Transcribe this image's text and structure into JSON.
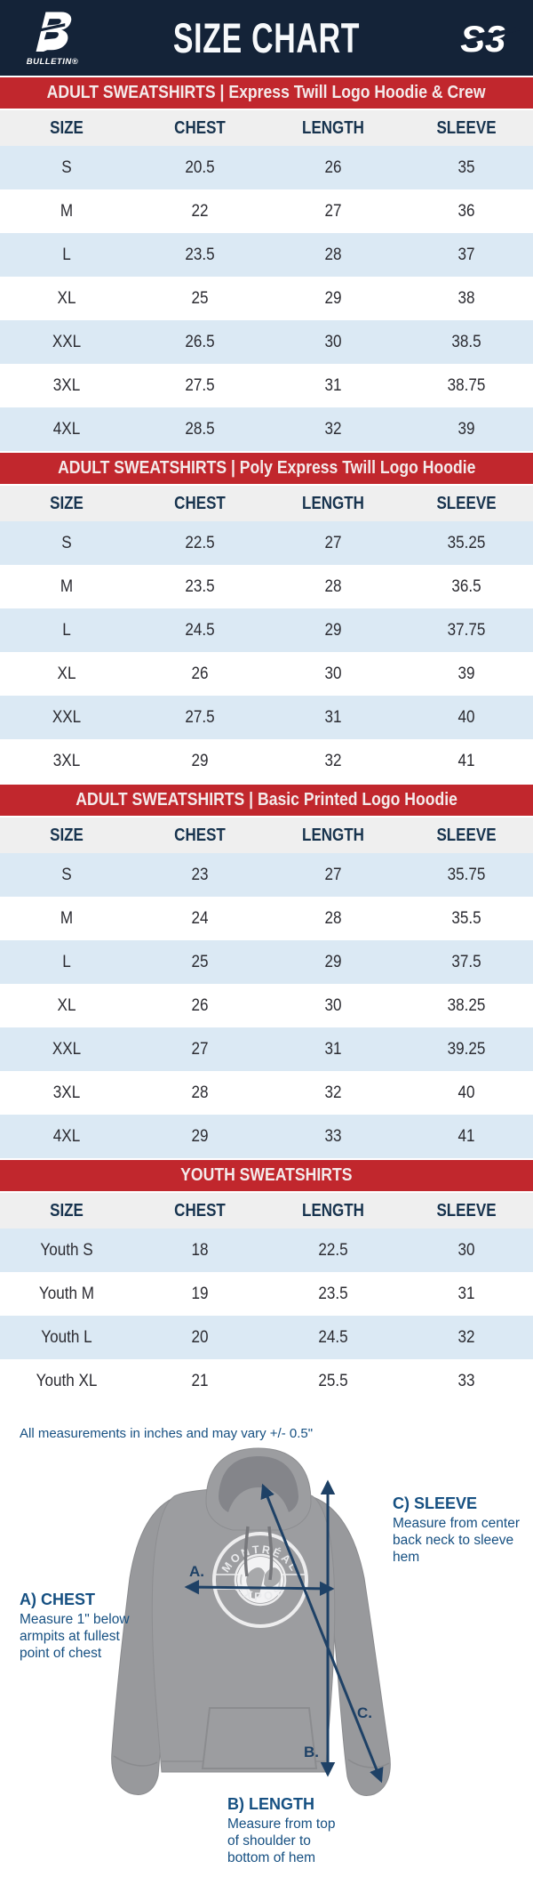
{
  "header": {
    "title": "SIZE CHART",
    "left_logo_icon": "bulletin-b-logo",
    "left_logo_text": "BULLETIN®",
    "right_logo_icon": "s3-logo",
    "right_logo_alt": "S3"
  },
  "columns": [
    "SIZE",
    "CHEST",
    "LENGTH",
    "SLEEVE"
  ],
  "tables": [
    {
      "banner": "ADULT SWEATSHIRTS | Express Twill Logo Hoodie & Crew",
      "rows": [
        [
          "S",
          "20.5",
          "26",
          "35"
        ],
        [
          "M",
          "22",
          "27",
          "36"
        ],
        [
          "L",
          "23.5",
          "28",
          "37"
        ],
        [
          "XL",
          "25",
          "29",
          "38"
        ],
        [
          "XXL",
          "26.5",
          "30",
          "38.5"
        ],
        [
          "3XL",
          "27.5",
          "31",
          "38.75"
        ],
        [
          "4XL",
          "28.5",
          "32",
          "39"
        ]
      ]
    },
    {
      "banner": "ADULT SWEATSHIRTS | Poly Express Twill Logo Hoodie",
      "rows": [
        [
          "S",
          "22.5",
          "27",
          "35.25"
        ],
        [
          "M",
          "23.5",
          "28",
          "36.5"
        ],
        [
          "L",
          "24.5",
          "29",
          "37.75"
        ],
        [
          "XL",
          "26",
          "30",
          "39"
        ],
        [
          "XXL",
          "27.5",
          "31",
          "40"
        ],
        [
          "3XL",
          "29",
          "32",
          "41"
        ]
      ]
    },
    {
      "banner": "ADULT SWEATSHIRTS | Basic Printed Logo Hoodie",
      "rows": [
        [
          "S",
          "23",
          "27",
          "35.75"
        ],
        [
          "M",
          "24",
          "28",
          "35.5"
        ],
        [
          "L",
          "25",
          "29",
          "37.5"
        ],
        [
          "XL",
          "26",
          "30",
          "38.25"
        ],
        [
          "XXL",
          "27",
          "31",
          "39.25"
        ],
        [
          "3XL",
          "28",
          "32",
          "40"
        ],
        [
          "4XL",
          "29",
          "33",
          "41"
        ]
      ]
    },
    {
      "banner": "YOUTH SWEATSHIRTS",
      "rows": [
        [
          "Youth S",
          "18",
          "22.5",
          "30"
        ],
        [
          "Youth M",
          "19",
          "23.5",
          "31"
        ],
        [
          "Youth L",
          "20",
          "24.5",
          "32"
        ],
        [
          "Youth XL",
          "21",
          "25.5",
          "33"
        ]
      ]
    }
  ],
  "note": "All measurements in inches and may vary +/- 0.5\"",
  "diagram": {
    "chest_label": "A) CHEST",
    "chest_desc": "Measure 1\" below\narmpits at fullest\npoint of chest",
    "length_label": "B) LENGTH",
    "length_desc": "Measure from top\nof shoulder to\nbottom of hem",
    "sleeve_label": "C) SLEEVE",
    "sleeve_desc": "Measure from center\nback neck to sleeve hem",
    "arrow_a": "A.",
    "arrow_b": "B.",
    "arrow_c": "C.",
    "shirt_logo_top": "MONTRÉAL",
    "shirt_logo_bottom": "EXPOS"
  },
  "colors": {
    "navy_header": "#142338",
    "banner_red": "#c1272d",
    "row_blue": "#dbe9f4",
    "thead_gray": "#efefef",
    "header_text": "#17334e",
    "label_blue": "#165082",
    "arrow_navy": "#1e4166",
    "hoodie_gray": "#9c9da0"
  }
}
